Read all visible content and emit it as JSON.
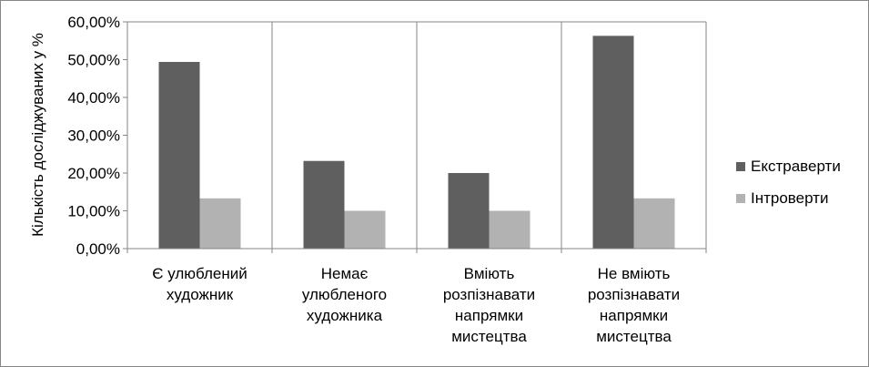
{
  "chart_data": {
    "type": "bar",
    "title": "",
    "xlabel": "",
    "ylabel": "Кількість досліджуваних у %",
    "ylim": [
      0,
      60
    ],
    "yticks": [
      0,
      10,
      20,
      30,
      40,
      50,
      60
    ],
    "ytick_labels": [
      "0,00%",
      "10,00%",
      "20,00%",
      "30,00%",
      "40,00%",
      "50,00%",
      "60,00%"
    ],
    "grid": "vertical",
    "legend": "right",
    "categories": [
      [
        "Є улюблений",
        "художник"
      ],
      [
        "Немає",
        "улюбленого",
        "художника"
      ],
      [
        "Вміють",
        "розпізнавати",
        "напрямки",
        "мистецтва"
      ],
      [
        "Не вміють",
        "розпізнавати",
        "напрямки",
        "мистецтва"
      ]
    ],
    "series": [
      {
        "name": "Екстраверти",
        "color": "#5f5f5f",
        "values": [
          49.4,
          23.2,
          20.0,
          56.3
        ]
      },
      {
        "name": "Інтроверти",
        "color": "#b2b2b2",
        "values": [
          13.3,
          10.0,
          10.0,
          13.3
        ]
      }
    ]
  }
}
